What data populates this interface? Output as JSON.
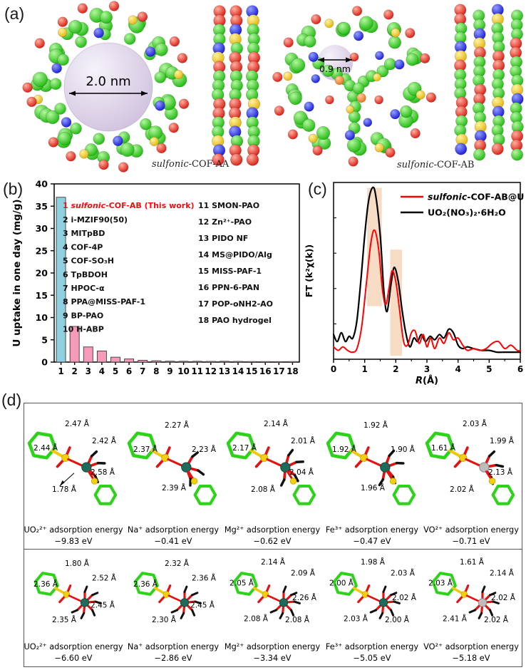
{
  "figure": {
    "panel_a": {
      "label": "(a)",
      "structures": [
        {
          "name_italic": "sulfonic",
          "name_rest": "-COF-AA",
          "pore_label": "2.0 nm"
        },
        {
          "name_italic": "sulfonic",
          "name_rest": "-COF-AB",
          "pore_label": "0.9 nm"
        }
      ]
    },
    "panel_b": {
      "label": "(b)"
    },
    "panel_c": {
      "label": "(c)"
    },
    "panel_d": {
      "label": "(d)",
      "rows": [
        [
          {
            "title": "UO₂²⁺ adsorption energy",
            "energy": "−9.83 eV",
            "bonds": [
              "2.47 Å",
              "2.44 Å",
              "2.42 Å",
              "2.58 Å",
              "1.78 Å"
            ]
          },
          {
            "title": "Na⁺ adsorption energy",
            "energy": "−0.41 eV",
            "bonds": [
              "2.27 Å",
              "2.37 Å",
              "2.23 Å",
              "2.39 Å"
            ]
          },
          {
            "title": "Mg²⁺ adsorption energy",
            "energy": "−0.62 eV",
            "bonds": [
              "2.14 Å",
              "2.17 Å",
              "2.01 Å",
              "2.04 Å",
              "2.08 Å"
            ]
          },
          {
            "title": "Fe³⁺ adsorption energy",
            "energy": "−0.47 eV",
            "bonds": [
              "1.92 Å",
              "1.92 Å",
              "1.90 Å",
              "1.96 Å"
            ]
          },
          {
            "title": "VO²⁺ adsorption energy",
            "energy": "−0.71 eV",
            "bonds": [
              "2.03 Å",
              "1.61 Å",
              "1.99 Å",
              "2.13 Å",
              "2.02 Å"
            ]
          }
        ],
        [
          {
            "title": "UO₂²⁺ adsorption energy",
            "energy": "−6.60 eV",
            "bonds": [
              "1.80 Å",
              "2.36 Å",
              "2.52 Å",
              "2.45 Å",
              "2.35 Å"
            ]
          },
          {
            "title": "Na⁺ adsorption energy",
            "energy": "−2.86 eV",
            "bonds": [
              "2.32 Å",
              "2.36 Å",
              "2.36 Å",
              "2.45 Å",
              "2.30 Å"
            ]
          },
          {
            "title": "Mg²⁺ adsorption energy",
            "energy": "−3.34 eV",
            "bonds": [
              "2.14 Å",
              "2.09 Å",
              "2.05 Å",
              "2.26 Å",
              "2.08 Å",
              "2.08 Å"
            ]
          },
          {
            "title": "Fe³⁺ adsorption energy",
            "energy": "−5.05 eV",
            "bonds": [
              "1.98 Å",
              "2.03 Å",
              "2.00 Å",
              "2.02 Å",
              "2.03 Å",
              "2.00 Å"
            ]
          },
          {
            "title": "VO²⁺ adsorption energy",
            "energy": "−5.18 eV",
            "bonds": [
              "1.61 Å",
              "2.14 Å",
              "2.03 Å",
              "2.02 Å",
              "2.41 Å",
              "2.02 Å"
            ]
          }
        ]
      ]
    }
  },
  "chart_data": [
    {
      "id": "panel_b",
      "type": "bar",
      "title": "",
      "categories": [
        "1",
        "2",
        "3",
        "4",
        "5",
        "6",
        "7",
        "8",
        "9",
        "10",
        "11",
        "12",
        "13",
        "14",
        "15",
        "16",
        "17",
        "18"
      ],
      "values": [
        37,
        8,
        3.4,
        2.5,
        1.1,
        0.7,
        0.4,
        0.3,
        0.2,
        0.18,
        0.18,
        0.15,
        0.18,
        0.15,
        0.12,
        0.12,
        0.1,
        0.12
      ],
      "xlabel": "",
      "ylabel": "U uptake in one day (mg/g)",
      "ylim": [
        0,
        40
      ],
      "yticks": [
        0,
        5,
        10,
        15,
        20,
        25,
        30,
        35,
        40
      ],
      "grid": false,
      "bar_color_highlight": "#8fd0e0",
      "bar_color_default": "#f79ab8",
      "legend_highlight": {
        "num": "1 ",
        "italic": "sulfonic",
        "rest": "-COF-AB (This work)",
        "color": "#f20d0d"
      },
      "legend_col1": [
        "2 i-MZIF90(50)",
        "3 MITpBD",
        "4 COF-4P",
        "5 COF-SO₃H",
        "6 TpBDOH",
        "7 HPOC-α",
        "8 PPA@MISS-PAF-1",
        "9 BP-PAO",
        "10 H-ABP"
      ],
      "legend_col2": [
        "11 SMON-PAO",
        "12 Zn²⁺-PAO",
        "13 PIDO NF",
        "14 MS@PIDO/Alg",
        "15 MISS-PAF-1",
        "16 PPN-6-PAN",
        "17 POP-oNH2-AO",
        "18 PAO hydrogel"
      ]
    },
    {
      "id": "panel_c",
      "type": "line",
      "title": "",
      "xlabel": "R(Å)",
      "ylabel": "FT (k²χ(k))",
      "xlim": [
        0,
        6
      ],
      "xticks": [
        0,
        1,
        2,
        3,
        4,
        5,
        6
      ],
      "grid": false,
      "legend_position": "top-right",
      "band_color": "#f5d7bf",
      "highlight_bands": [
        {
          "x0": 1.08,
          "x1": 1.55,
          "y0": 0.3,
          "y1": 0.97
        },
        {
          "x0": 1.82,
          "x1": 2.2,
          "y0": 0.02,
          "y1": 0.62
        }
      ],
      "series": [
        {
          "name_italic": "sulfonic",
          "name": "-COF-AB@U",
          "color": "#ff0000",
          "x": [
            0,
            0.15,
            0.3,
            0.45,
            0.6,
            0.75,
            0.9,
            1.05,
            1.2,
            1.32,
            1.45,
            1.58,
            1.68,
            1.78,
            1.88,
            2.0,
            2.12,
            2.25,
            2.38,
            2.5,
            2.62,
            2.75,
            2.88,
            3.0,
            3.12,
            3.25,
            3.4,
            3.55,
            3.7,
            3.85,
            4.0,
            4.15,
            4.3,
            4.5,
            4.7,
            4.9,
            5.1,
            5.3,
            5.5,
            5.7,
            5.9,
            6.0
          ],
          "y": [
            0.07,
            0.05,
            0.07,
            0.05,
            0.04,
            0.06,
            0.18,
            0.42,
            0.66,
            0.73,
            0.62,
            0.38,
            0.31,
            0.4,
            0.5,
            0.44,
            0.28,
            0.1,
            0.08,
            0.15,
            0.16,
            0.09,
            0.14,
            0.07,
            0.12,
            0.06,
            0.12,
            0.09,
            0.15,
            0.11,
            0.12,
            0.08,
            0.05,
            0.06,
            0.05,
            0.06,
            0.09,
            0.1,
            0.06,
            0.08,
            0.05,
            0.05
          ]
        },
        {
          "name_italic": "",
          "name": "UO₂(NO₃)₂·6H₂O",
          "color": "#000000",
          "x": [
            0,
            0.12,
            0.25,
            0.38,
            0.5,
            0.62,
            0.75,
            0.88,
            1.0,
            1.12,
            1.25,
            1.35,
            1.5,
            1.62,
            1.72,
            1.85,
            1.95,
            2.08,
            2.2,
            2.32,
            2.45,
            2.58,
            2.7,
            2.82,
            2.95,
            3.1,
            3.25,
            3.4,
            3.55,
            3.7,
            3.85,
            4.0,
            4.15,
            4.3,
            4.5,
            4.75,
            5.0,
            5.25,
            5.5,
            5.75,
            6.0
          ],
          "y": [
            0.14,
            0.1,
            0.15,
            0.1,
            0.13,
            0.12,
            0.22,
            0.45,
            0.7,
            0.89,
            0.97,
            0.93,
            0.7,
            0.38,
            0.27,
            0.43,
            0.52,
            0.44,
            0.28,
            0.15,
            0.07,
            0.12,
            0.1,
            0.14,
            0.1,
            0.13,
            0.11,
            0.14,
            0.12,
            0.17,
            0.15,
            0.08,
            0.06,
            0.07,
            0.06,
            0.05,
            0.05,
            0.04,
            0.04,
            0.04,
            0.04
          ]
        }
      ]
    }
  ],
  "colors": {
    "carbon_green": "#17b507",
    "oxygen_red": "#d40f06",
    "nitrogen_blue": "#1313cf",
    "sulfur_yellow": "#e8b400",
    "pore_lavender": "#d9cbe4",
    "metal_teal": "#1e6b5b",
    "metal_silver": "#bcbcbc",
    "band_peach": "#f5d7bf"
  }
}
